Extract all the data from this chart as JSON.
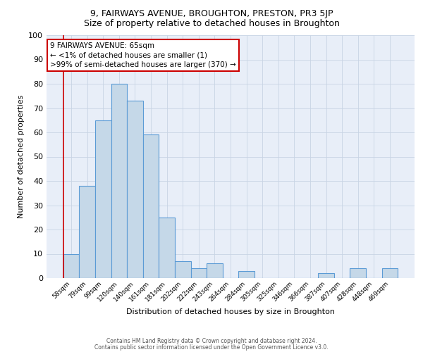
{
  "title": "9, FAIRWAYS AVENUE, BROUGHTON, PRESTON, PR3 5JP",
  "subtitle": "Size of property relative to detached houses in Broughton",
  "xlabel": "Distribution of detached houses by size in Broughton",
  "ylabel": "Number of detached properties",
  "categories": [
    "58sqm",
    "79sqm",
    "99sqm",
    "120sqm",
    "140sqm",
    "161sqm",
    "181sqm",
    "202sqm",
    "222sqm",
    "243sqm",
    "264sqm",
    "284sqm",
    "305sqm",
    "325sqm",
    "346sqm",
    "366sqm",
    "387sqm",
    "407sqm",
    "428sqm",
    "448sqm",
    "469sqm"
  ],
  "values": [
    10,
    38,
    65,
    80,
    73,
    59,
    25,
    7,
    4,
    6,
    0,
    3,
    0,
    0,
    0,
    0,
    2,
    0,
    4,
    0,
    4
  ],
  "bar_color": "#c5d8e8",
  "bar_edge_color": "#5b9bd5",
  "annotation_text": "9 FAIRWAYS AVENUE: 65sqm\n← <1% of detached houses are smaller (1)\n>99% of semi-detached houses are larger (370) →",
  "annotation_box_color": "#ffffff",
  "annotation_box_edge_color": "#cc0000",
  "ylim": [
    0,
    100
  ],
  "yticks": [
    0,
    10,
    20,
    30,
    40,
    50,
    60,
    70,
    80,
    90,
    100
  ],
  "grid_color": "#c8d4e4",
  "background_color": "#e8eef8",
  "footer_line1": "Contains HM Land Registry data © Crown copyright and database right 2024.",
  "footer_line2": "Contains public sector information licensed under the Open Government Licence v3.0.",
  "title_fontsize": 9,
  "subtitle_fontsize": 9,
  "ylabel_fontsize": 8,
  "xlabel_fontsize": 8
}
